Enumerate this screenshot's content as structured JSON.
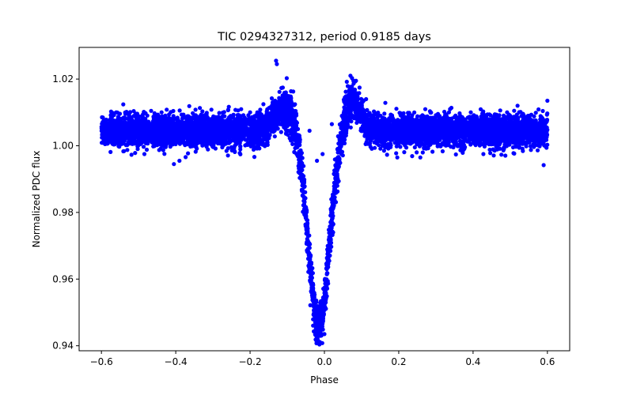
{
  "chart_data": {
    "type": "scatter",
    "title": "TIC 0294327312, period 0.9185 days",
    "xlabel": "Phase",
    "ylabel": "Normalized PDC flux",
    "xlim": [
      -0.66,
      0.66
    ],
    "ylim": [
      0.9385,
      1.0295
    ],
    "xticks": [
      -0.6,
      -0.4,
      -0.2,
      0.0,
      0.2,
      0.4,
      0.6
    ],
    "xtick_labels": [
      "−0.6",
      "−0.4",
      "−0.2",
      "0.0",
      "0.2",
      "0.4",
      "0.6"
    ],
    "yticks": [
      0.94,
      0.96,
      0.98,
      1.0,
      1.02
    ],
    "ytick_labels": [
      "0.94",
      "0.96",
      "0.98",
      "1.00",
      "1.02"
    ],
    "grid": false,
    "series": [
      {
        "name": "flux",
        "color": "#0000ff",
        "marker": "circle",
        "phase_range": [
          -0.6,
          0.6
        ],
        "baseline_flux": 1.0045,
        "baseline_scatter": 0.0042,
        "transit_center": -0.015,
        "transit_depth_min": 0.946,
        "pre_transit_bump_peak": 1.0155,
        "post_transit_bump_peak": 1.0175,
        "notable_points": [
          {
            "x": -0.13,
            "y": 1.0255
          },
          {
            "x": -0.128,
            "y": 1.0245
          },
          {
            "x": 0.07,
            "y": 1.021
          },
          {
            "x": 0.085,
            "y": 1.0195
          },
          {
            "x": -0.04,
            "y": 1.0045
          },
          {
            "x": 0.02,
            "y": 1.0065
          },
          {
            "x": -0.005,
            "y": 0.9975
          },
          {
            "x": -0.02,
            "y": 0.9955
          },
          {
            "x": -0.405,
            "y": 0.9945
          },
          {
            "x": -0.39,
            "y": 0.9955
          },
          {
            "x": 0.59,
            "y": 0.9942
          },
          {
            "x": 0.6,
            "y": 1.0135
          },
          {
            "x": -0.01,
            "y": 0.943
          },
          {
            "x": 0.0,
            "y": 0.9435
          }
        ]
      }
    ]
  }
}
